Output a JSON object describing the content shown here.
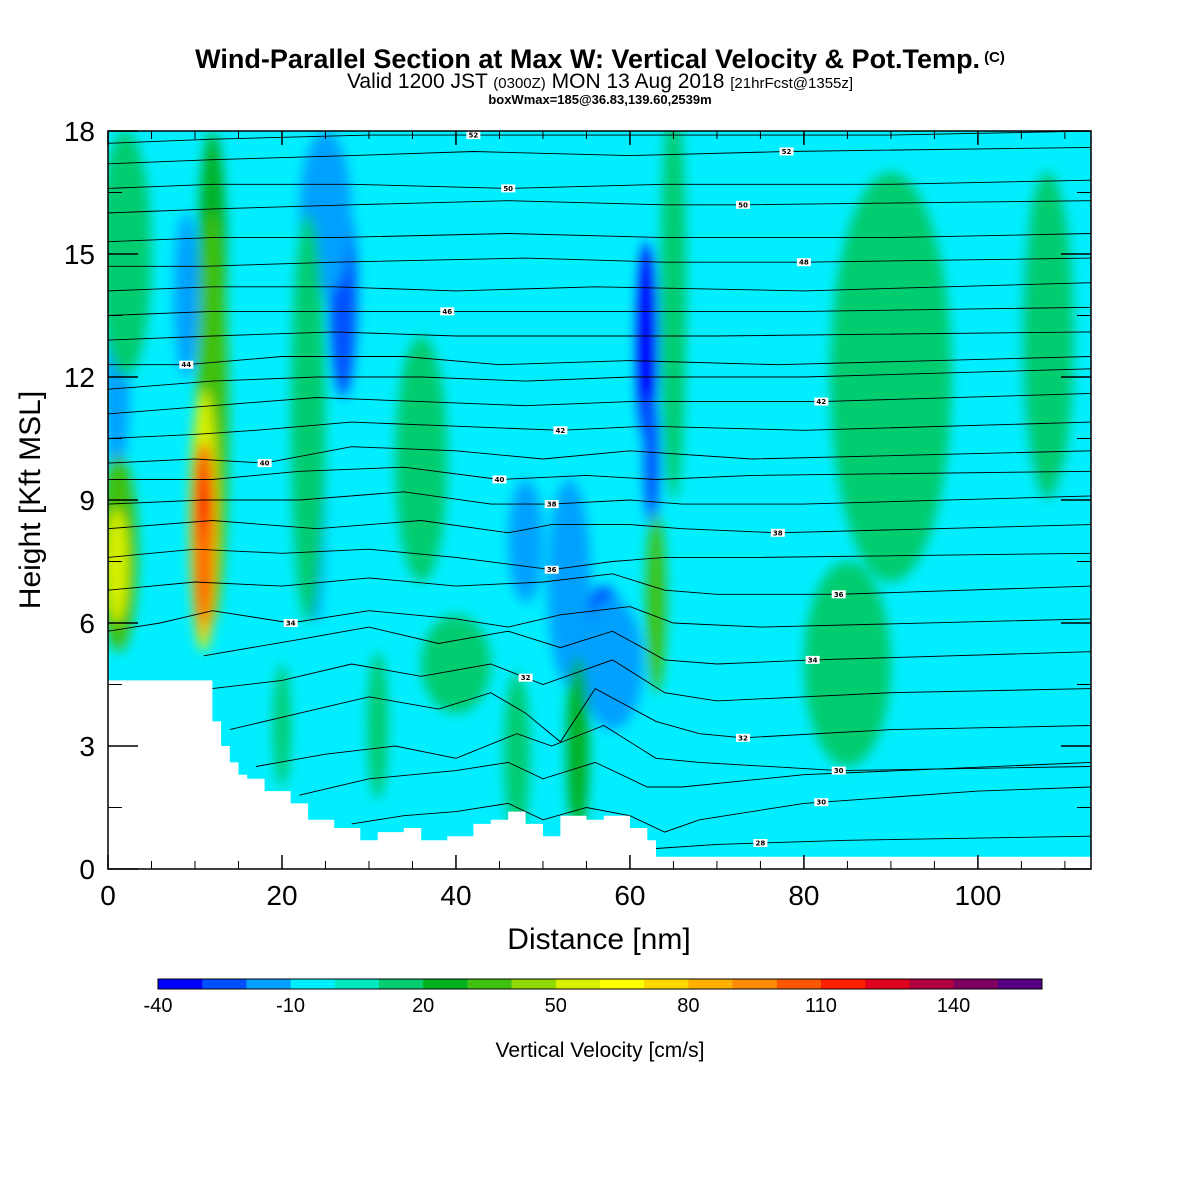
{
  "header": {
    "title": "Wind-Parallel Section at Max W: Vertical Velocity & Pot.Temp.",
    "title_mark": "(C)",
    "valid_prefix": "Valid 1200 JST",
    "valid_utc": "(0300Z)",
    "valid_date": "MON 13 Aug 2018",
    "forecast": "[21hrFcst@1355z]",
    "boxwmax": "boxWmax=185@36.83,139.60,2539m"
  },
  "chart_data": {
    "type": "heatmap",
    "title": "Wind-Parallel Section at Max W: Vertical Velocity & Pot.Temp.",
    "xlabel": "Distance [nm]",
    "ylabel": "Height [Kft MSL]",
    "xlim": [
      0,
      113
    ],
    "ylim": [
      0,
      18
    ],
    "x_ticks": [
      0,
      20,
      40,
      60,
      80,
      100
    ],
    "x_tick_labels": [
      "0",
      "20",
      "40",
      "60",
      "80",
      "100"
    ],
    "y_ticks": [
      0,
      3,
      6,
      9,
      12,
      15,
      18
    ],
    "y_tick_labels": [
      "0",
      "3",
      "6",
      "9",
      "12",
      "15",
      "18"
    ],
    "colorbar": {
      "title": "Vertical Velocity [cm/s]",
      "min": -40,
      "max": 160,
      "step": 10,
      "labels": [
        "-40",
        "-10",
        "20",
        "50",
        "80",
        "110",
        "140"
      ],
      "label_values": [
        -40,
        -10,
        20,
        50,
        80,
        110,
        140
      ],
      "colors": [
        "#0000ff",
        "#0050ff",
        "#00a0ff",
        "#00eeff",
        "#00e8c0",
        "#00cc70",
        "#00b020",
        "#40c010",
        "#90d800",
        "#d8f000",
        "#ffff00",
        "#ffd800",
        "#ffb000",
        "#ff8c00",
        "#ff5800",
        "#ff2000",
        "#e00020",
        "#b00040",
        "#800060",
        "#500080"
      ]
    },
    "terrain_kft": [
      [
        0,
        4.6
      ],
      [
        10.5,
        4.6
      ],
      [
        12,
        3.6
      ],
      [
        13,
        3.0
      ],
      [
        14,
        2.6
      ],
      [
        15,
        2.3
      ],
      [
        16,
        2.2
      ],
      [
        18,
        1.9
      ],
      [
        21,
        1.6
      ],
      [
        23,
        1.2
      ],
      [
        26,
        1.0
      ],
      [
        29,
        0.7
      ],
      [
        31,
        0.9
      ],
      [
        34,
        1.0
      ],
      [
        36,
        0.7
      ],
      [
        39,
        0.8
      ],
      [
        42,
        1.1
      ],
      [
        44,
        1.2
      ],
      [
        46,
        1.4
      ],
      [
        48,
        1.1
      ],
      [
        50,
        0.8
      ],
      [
        52,
        1.3
      ],
      [
        55,
        1.2
      ],
      [
        57,
        1.3
      ],
      [
        60,
        1.0
      ],
      [
        62,
        0.7
      ],
      [
        63,
        0.3
      ],
      [
        65,
        0.3
      ],
      [
        70,
        0.3
      ],
      [
        113,
        0.3
      ]
    ],
    "theta_contours": [
      {
        "label": "28",
        "label_x": 75,
        "pts": [
          [
            63,
            0.5
          ],
          [
            70,
            0.6
          ],
          [
            85,
            0.7
          ],
          [
            113,
            0.8
          ]
        ]
      },
      {
        "label": "30",
        "label_x": 82,
        "pts": [
          [
            28,
            1.1
          ],
          [
            34,
            1.3
          ],
          [
            40,
            1.4
          ],
          [
            46,
            1.6
          ],
          [
            50,
            1.2
          ],
          [
            55,
            1.5
          ],
          [
            60,
            1.3
          ],
          [
            64,
            0.9
          ],
          [
            68,
            1.2
          ],
          [
            80,
            1.6
          ],
          [
            100,
            1.9
          ],
          [
            113,
            2.0
          ]
        ]
      },
      {
        "label": "",
        "label_x": 0,
        "pts": [
          [
            22,
            1.8
          ],
          [
            30,
            2.2
          ],
          [
            40,
            2.4
          ],
          [
            46,
            2.6
          ],
          [
            50,
            2.2
          ],
          [
            56,
            2.6
          ],
          [
            62,
            2.0
          ],
          [
            66,
            2.0
          ],
          [
            80,
            2.3
          ],
          [
            113,
            2.6
          ]
        ]
      },
      {
        "label": "30",
        "label_x": 84,
        "pts": [
          [
            17,
            2.5
          ],
          [
            25,
            2.8
          ],
          [
            33,
            3.0
          ],
          [
            40,
            2.7
          ],
          [
            47,
            3.3
          ],
          [
            51,
            3.0
          ],
          [
            57,
            3.5
          ],
          [
            63,
            2.7
          ],
          [
            68,
            2.6
          ],
          [
            84,
            2.4
          ],
          [
            113,
            2.5
          ]
        ]
      },
      {
        "label": "32",
        "label_x": 73,
        "pts": [
          [
            14,
            3.4
          ],
          [
            22,
            3.8
          ],
          [
            30,
            4.2
          ],
          [
            38,
            3.9
          ],
          [
            44,
            4.3
          ],
          [
            48,
            3.8
          ],
          [
            52,
            3.1
          ],
          [
            56,
            4.4
          ],
          [
            63,
            3.6
          ],
          [
            68,
            3.3
          ],
          [
            73,
            3.2
          ],
          [
            90,
            3.4
          ],
          [
            113,
            3.5
          ]
        ]
      },
      {
        "label": "32",
        "label_x": 48,
        "pts": [
          [
            12,
            4.4
          ],
          [
            20,
            4.6
          ],
          [
            28,
            5.0
          ],
          [
            36,
            4.7
          ],
          [
            44,
            5.0
          ],
          [
            50,
            4.5
          ],
          [
            58,
            5.1
          ],
          [
            64,
            4.3
          ],
          [
            70,
            4.1
          ],
          [
            90,
            4.3
          ],
          [
            113,
            4.4
          ]
        ]
      },
      {
        "label": "34",
        "label_x": 81,
        "pts": [
          [
            11,
            5.2
          ],
          [
            22,
            5.6
          ],
          [
            30,
            5.9
          ],
          [
            38,
            5.5
          ],
          [
            46,
            5.8
          ],
          [
            52,
            5.4
          ],
          [
            58,
            5.8
          ],
          [
            64,
            5.1
          ],
          [
            70,
            5.0
          ],
          [
            81,
            5.1
          ],
          [
            113,
            5.3
          ]
        ]
      },
      {
        "label": "34",
        "label_x": 21,
        "pts": [
          [
            0,
            5.8
          ],
          [
            6,
            6.0
          ],
          [
            12,
            6.3
          ],
          [
            21,
            6.0
          ],
          [
            30,
            6.3
          ],
          [
            40,
            6.1
          ],
          [
            46,
            5.9
          ],
          [
            52,
            6.2
          ],
          [
            60,
            6.4
          ],
          [
            65,
            6.0
          ],
          [
            75,
            5.9
          ],
          [
            113,
            6.1
          ]
        ]
      },
      {
        "label": "36",
        "label_x": 84,
        "pts": [
          [
            0,
            6.8
          ],
          [
            10,
            7.0
          ],
          [
            20,
            6.9
          ],
          [
            30,
            7.1
          ],
          [
            40,
            6.9
          ],
          [
            50,
            7.0
          ],
          [
            58,
            7.2
          ],
          [
            64,
            6.8
          ],
          [
            70,
            6.7
          ],
          [
            84,
            6.7
          ],
          [
            113,
            6.9
          ]
        ]
      },
      {
        "label": "36",
        "label_x": 51,
        "pts": [
          [
            0,
            7.6
          ],
          [
            10,
            7.8
          ],
          [
            20,
            7.7
          ],
          [
            30,
            7.8
          ],
          [
            40,
            7.6
          ],
          [
            51,
            7.3
          ],
          [
            58,
            7.5
          ],
          [
            64,
            7.6
          ],
          [
            75,
            7.6
          ],
          [
            113,
            7.7
          ]
        ]
      },
      {
        "label": "38",
        "label_x": 77,
        "pts": [
          [
            0,
            8.3
          ],
          [
            12,
            8.5
          ],
          [
            24,
            8.3
          ],
          [
            36,
            8.5
          ],
          [
            46,
            8.2
          ],
          [
            51,
            8.4
          ],
          [
            60,
            8.4
          ],
          [
            66,
            8.3
          ],
          [
            77,
            8.2
          ],
          [
            113,
            8.4
          ]
        ]
      },
      {
        "label": "38",
        "label_x": 51,
        "pts": [
          [
            0,
            8.9
          ],
          [
            11,
            9.0
          ],
          [
            22,
            9.0
          ],
          [
            34,
            9.2
          ],
          [
            44,
            8.9
          ],
          [
            51,
            8.9
          ],
          [
            60,
            9.0
          ],
          [
            66,
            8.9
          ],
          [
            80,
            8.9
          ],
          [
            113,
            9.1
          ]
        ]
      },
      {
        "label": "40",
        "label_x": 45,
        "pts": [
          [
            0,
            9.5
          ],
          [
            12,
            9.5
          ],
          [
            22,
            9.7
          ],
          [
            34,
            9.8
          ],
          [
            45,
            9.5
          ],
          [
            55,
            9.6
          ],
          [
            63,
            9.5
          ],
          [
            74,
            9.6
          ],
          [
            113,
            9.7
          ]
        ]
      },
      {
        "label": "40",
        "label_x": 18,
        "pts": [
          [
            0,
            9.9
          ],
          [
            10,
            10.0
          ],
          [
            18,
            9.9
          ],
          [
            28,
            10.3
          ],
          [
            40,
            10.2
          ],
          [
            50,
            10.0
          ],
          [
            60,
            10.2
          ],
          [
            74,
            10.0
          ],
          [
            113,
            10.2
          ]
        ]
      },
      {
        "label": "42",
        "label_x": 52,
        "pts": [
          [
            0,
            10.5
          ],
          [
            10,
            10.6
          ],
          [
            17,
            10.7
          ],
          [
            28,
            10.9
          ],
          [
            40,
            10.8
          ],
          [
            52,
            10.7
          ],
          [
            62,
            10.8
          ],
          [
            80,
            10.7
          ],
          [
            113,
            10.9
          ]
        ]
      },
      {
        "label": "42",
        "label_x": 82,
        "pts": [
          [
            0,
            11.1
          ],
          [
            12,
            11.3
          ],
          [
            24,
            11.5
          ],
          [
            36,
            11.4
          ],
          [
            48,
            11.3
          ],
          [
            60,
            11.4
          ],
          [
            82,
            11.4
          ],
          [
            113,
            11.6
          ]
        ]
      },
      {
        "label": "",
        "label_x": 0,
        "pts": [
          [
            0,
            11.7
          ],
          [
            12,
            11.9
          ],
          [
            24,
            12.0
          ],
          [
            36,
            12.0
          ],
          [
            48,
            11.9
          ],
          [
            60,
            12.0
          ],
          [
            80,
            12.0
          ],
          [
            113,
            12.2
          ]
        ]
      },
      {
        "label": "44",
        "label_x": 9,
        "pts": [
          [
            0,
            12.3
          ],
          [
            9,
            12.3
          ],
          [
            20,
            12.5
          ],
          [
            34,
            12.5
          ],
          [
            45,
            12.3
          ],
          [
            60,
            12.4
          ],
          [
            77,
            12.3
          ],
          [
            113,
            12.5
          ]
        ]
      },
      {
        "label": "",
        "label_x": 0,
        "pts": [
          [
            0,
            12.9
          ],
          [
            12,
            13.0
          ],
          [
            26,
            13.1
          ],
          [
            40,
            13.0
          ],
          [
            54,
            13.0
          ],
          [
            70,
            13.0
          ],
          [
            113,
            13.1
          ]
        ]
      },
      {
        "label": "46",
        "label_x": 39,
        "pts": [
          [
            0,
            13.5
          ],
          [
            12,
            13.6
          ],
          [
            26,
            13.6
          ],
          [
            39,
            13.6
          ],
          [
            54,
            13.6
          ],
          [
            80,
            13.6
          ],
          [
            113,
            13.7
          ]
        ]
      },
      {
        "label": "",
        "label_x": 0,
        "pts": [
          [
            0,
            14.1
          ],
          [
            12,
            14.2
          ],
          [
            26,
            14.2
          ],
          [
            40,
            14.1
          ],
          [
            56,
            14.2
          ],
          [
            80,
            14.1
          ],
          [
            113,
            14.3
          ]
        ]
      },
      {
        "label": "48",
        "label_x": 80,
        "pts": [
          [
            0,
            14.7
          ],
          [
            11,
            14.7
          ],
          [
            26,
            14.8
          ],
          [
            48,
            14.9
          ],
          [
            64,
            14.8
          ],
          [
            80,
            14.8
          ],
          [
            113,
            14.9
          ]
        ]
      },
      {
        "label": "",
        "label_x": 0,
        "pts": [
          [
            0,
            15.3
          ],
          [
            12,
            15.4
          ],
          [
            26,
            15.4
          ],
          [
            46,
            15.5
          ],
          [
            64,
            15.4
          ],
          [
            90,
            15.4
          ],
          [
            113,
            15.5
          ]
        ]
      },
      {
        "label": "50",
        "label_x": 73,
        "pts": [
          [
            0,
            16.0
          ],
          [
            12,
            16.1
          ],
          [
            28,
            16.2
          ],
          [
            46,
            16.3
          ],
          [
            64,
            16.2
          ],
          [
            73,
            16.2
          ],
          [
            113,
            16.3
          ]
        ]
      },
      {
        "label": "50",
        "label_x": 46,
        "pts": [
          [
            0,
            16.6
          ],
          [
            12,
            16.7
          ],
          [
            28,
            16.7
          ],
          [
            46,
            16.6
          ],
          [
            64,
            16.7
          ],
          [
            90,
            16.7
          ],
          [
            113,
            16.8
          ]
        ]
      },
      {
        "label": "52",
        "label_x": 78,
        "pts": [
          [
            0,
            17.2
          ],
          [
            12,
            17.3
          ],
          [
            28,
            17.4
          ],
          [
            42,
            17.5
          ],
          [
            60,
            17.4
          ],
          [
            78,
            17.5
          ],
          [
            113,
            17.6
          ]
        ]
      },
      {
        "label": "52",
        "label_x": 42,
        "pts": [
          [
            0,
            17.7
          ],
          [
            12,
            17.8
          ],
          [
            30,
            17.9
          ],
          [
            42,
            17.9
          ],
          [
            60,
            17.9
          ],
          [
            90,
            17.9
          ],
          [
            113,
            18.0
          ]
        ]
      }
    ]
  }
}
